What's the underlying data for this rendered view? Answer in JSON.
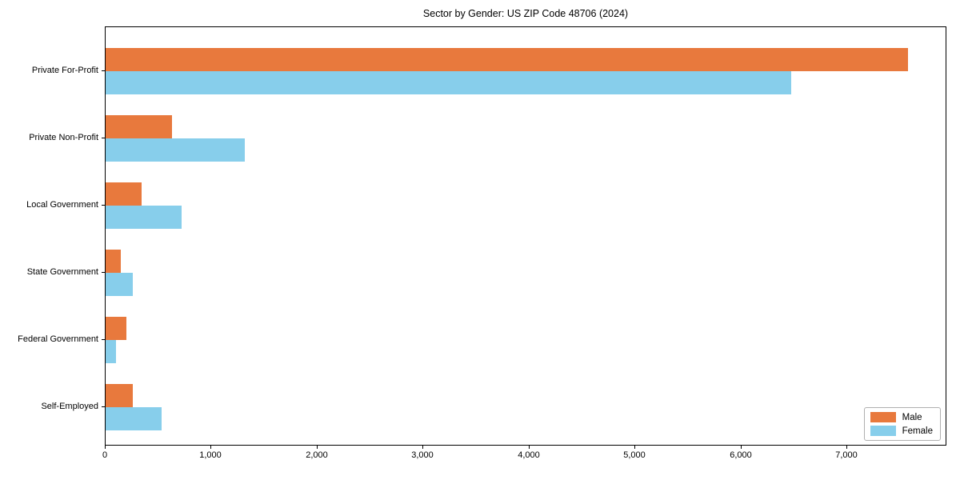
{
  "chart_data": {
    "type": "bar",
    "orientation": "horizontal",
    "title": "Sector by Gender: US ZIP Code 48706 (2024)",
    "categories": [
      "Private For-Profit",
      "Private Non-Profit",
      "Local Government",
      "State Government",
      "Federal Government",
      "Self-Employed"
    ],
    "series": [
      {
        "name": "Male",
        "color": "#e8793d",
        "values": [
          7570,
          630,
          340,
          140,
          200,
          260
        ]
      },
      {
        "name": "Female",
        "color": "#87ceeb",
        "values": [
          6470,
          1310,
          720,
          260,
          100,
          530
        ]
      }
    ],
    "xlabel": "",
    "ylabel": "",
    "xlim": [
      0,
      7940
    ],
    "xticks": {
      "values": [
        0,
        1000,
        2000,
        3000,
        4000,
        5000,
        6000,
        7000
      ],
      "labels": [
        "0",
        "1,000",
        "2,000",
        "3,000",
        "4,000",
        "5,000",
        "6,000",
        "7,000"
      ]
    },
    "legend": {
      "position": "lower right",
      "entries": [
        "Male",
        "Female"
      ]
    },
    "grid": false,
    "background": "#ffffff",
    "spine_color": "#000000"
  }
}
